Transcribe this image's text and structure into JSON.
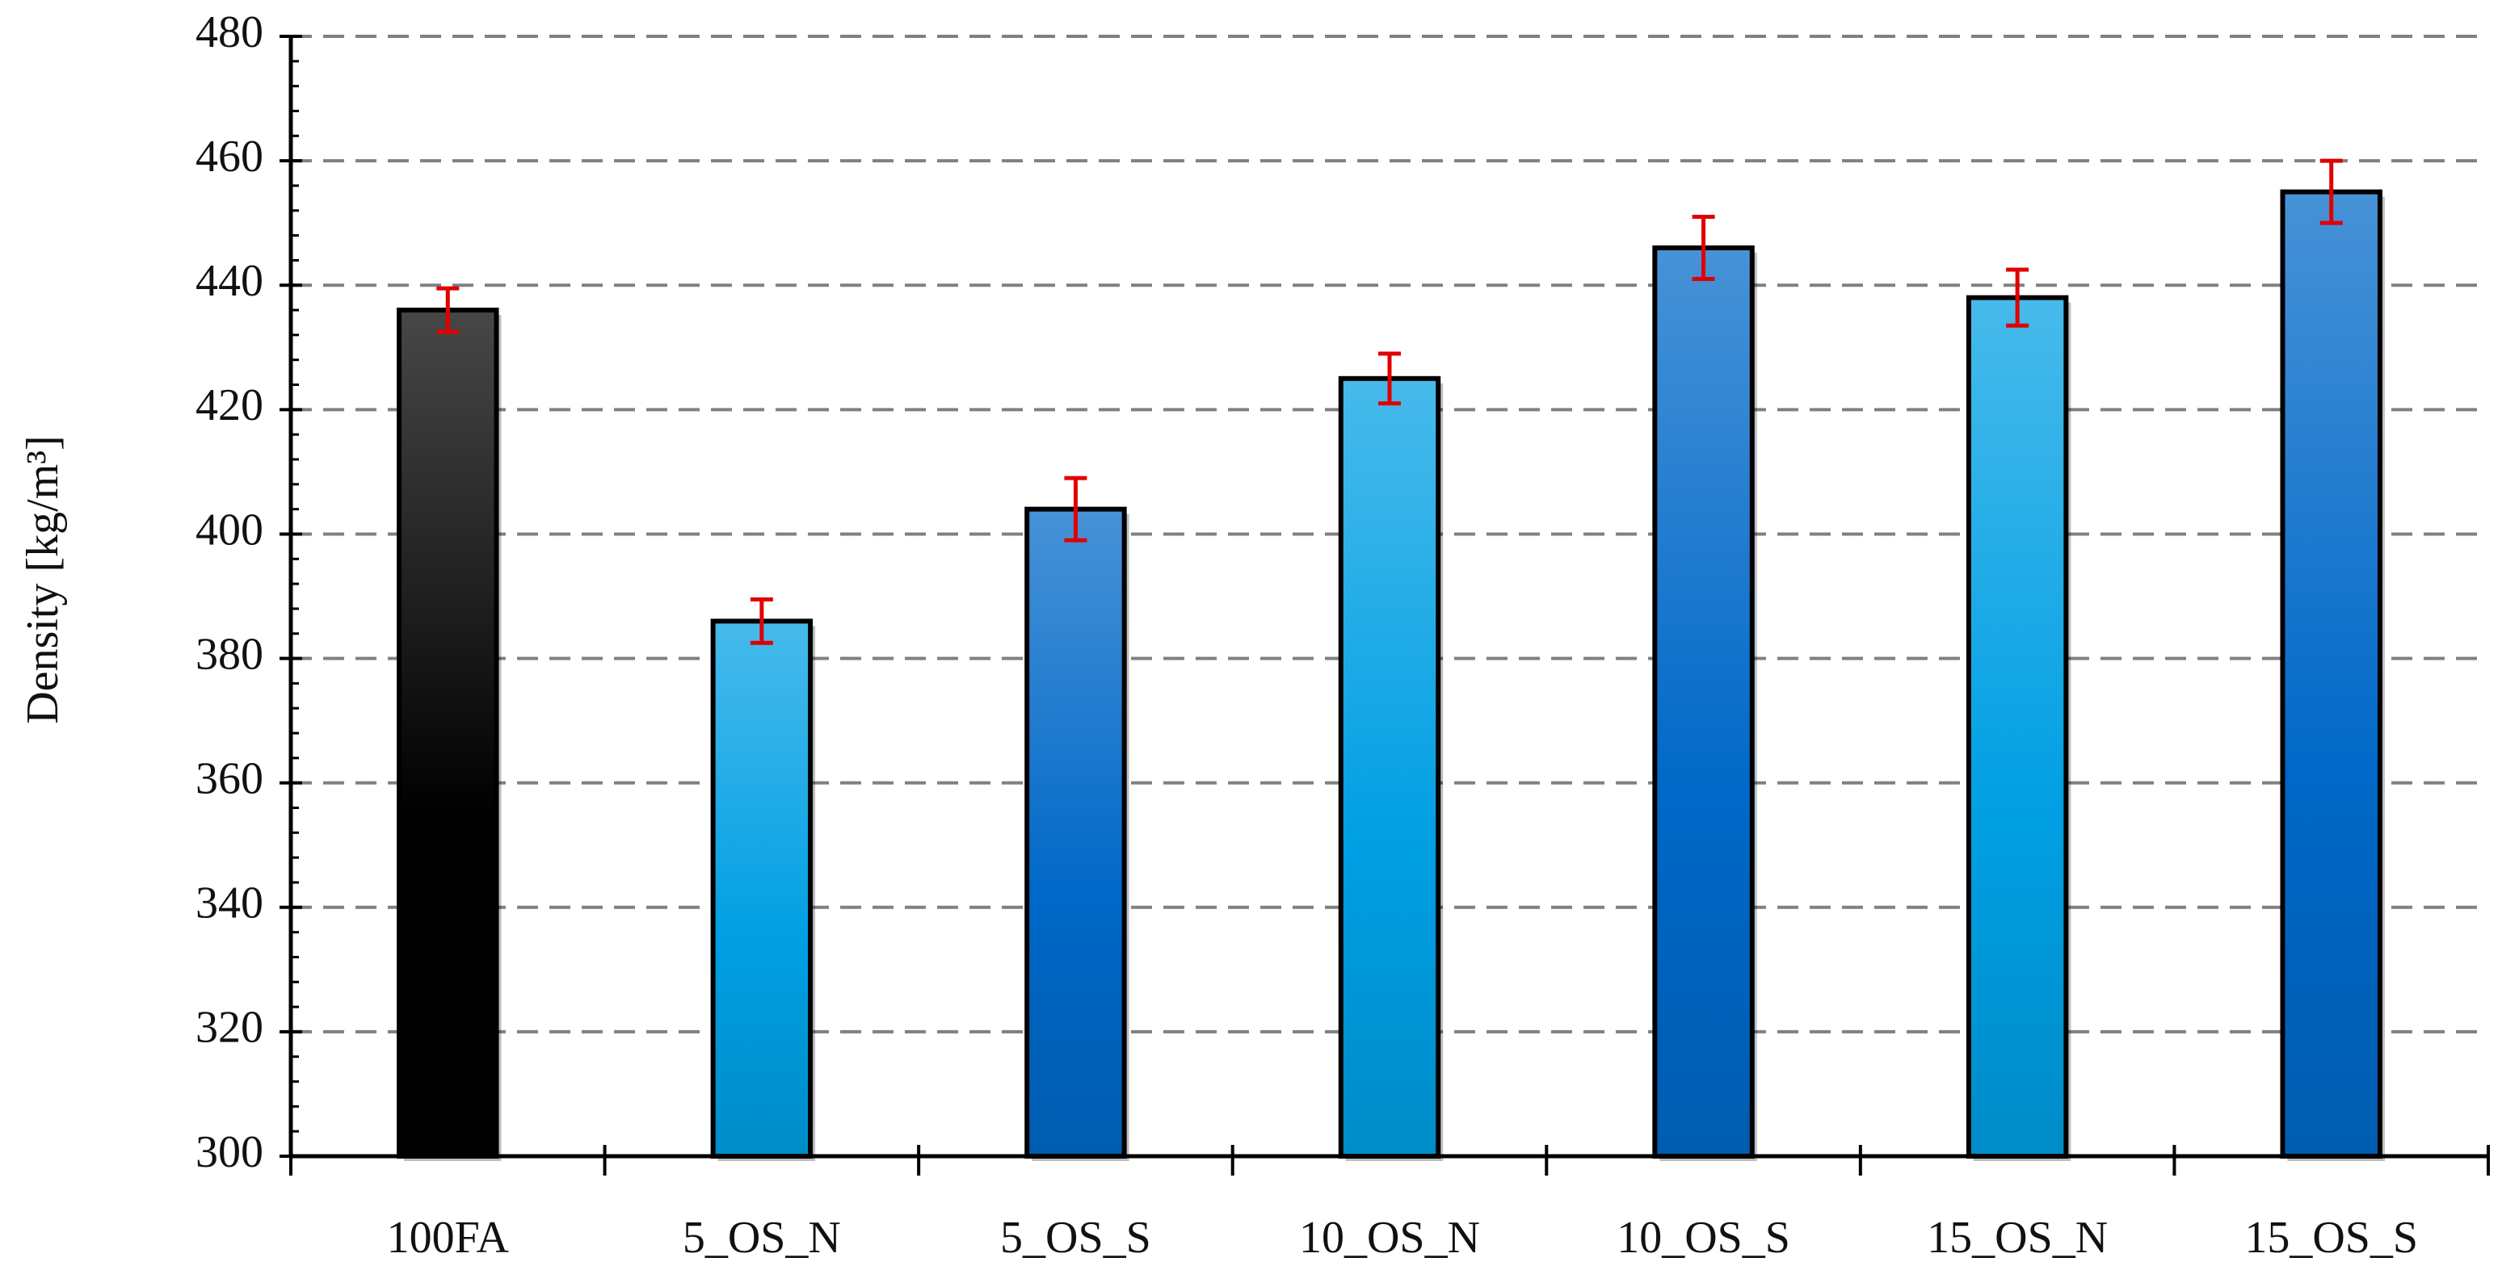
{
  "chart_data": {
    "type": "bar",
    "y_label": "Density [kg/m³]",
    "categories": [
      "100FA",
      "5_OS_N",
      "5_OS_S",
      "10_OS_N",
      "10_OS_S",
      "15_OS_N",
      "15_OS_S"
    ],
    "values": [
      436,
      386,
      404,
      425,
      446,
      438,
      455
    ],
    "errors": [
      3.5,
      3.5,
      5,
      4,
      5,
      4.5,
      5
    ],
    "colors": [
      "#000000",
      "#009fe3",
      "#0068c8",
      "#009fe3",
      "#0068c8",
      "#009fe3",
      "#0068c8"
    ],
    "error_color": "#e00000",
    "ylim": [
      300,
      480
    ],
    "yticks": [
      300,
      320,
      340,
      360,
      380,
      400,
      420,
      440,
      460,
      480
    ],
    "grid": true
  }
}
